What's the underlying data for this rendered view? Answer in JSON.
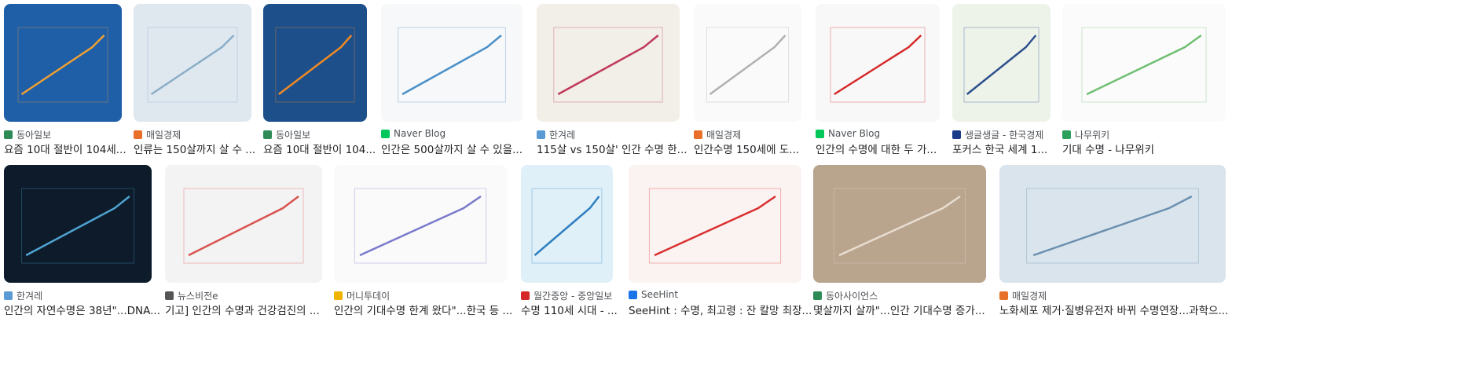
{
  "results": [
    {
      "source": "동아일보",
      "title": "요즘 10대 절반이 104세..."
    },
    {
      "source": "매일경제",
      "title": "인류는 150살까지 살 수 ..."
    },
    {
      "source": "동아일보",
      "title": "요즘 10대 절반이 104..."
    },
    {
      "source": "Naver Blog",
      "title": "인간은 500살까지 살 수 있을..."
    },
    {
      "source": "한겨레",
      "title": "115살 vs 150살' 인간 수명 한..."
    },
    {
      "source": "매일경제",
      "title": "인간수명 150세에 도..."
    },
    {
      "source": "Naver Blog",
      "title": "인간의 수명에 대한 두 가..."
    },
    {
      "source": "생글생글 - 한국경제",
      "title": "포커스 한국 세계 1..."
    },
    {
      "source": "나무위키",
      "title": "기대 수명 - 나무위키"
    },
    {
      "source": "한겨레",
      "title": "인간의 자연수명은 38년\"...DNA..."
    },
    {
      "source": "뉴스비전e",
      "title": "기고] 인간의 수명과 건강검진의 ..."
    },
    {
      "source": "머니투데이",
      "title": "인간의 기대수명 한계 왔다\"...한국 등 ..."
    },
    {
      "source": "월간중앙 - 중앙일보",
      "title": "수명 110세 시대 - ..."
    },
    {
      "source": "SeeHint",
      "title": "SeeHint : 수명, 최고령 : 잔 칼망 최장..."
    },
    {
      "source": "동아사이언스",
      "title": "몇살까지 살까\"...인간 기대수명 증가..."
    },
    {
      "source": "매일경제",
      "title": "노화세포 제거·질병유전자 바뀌 수명연장...과학으..."
    }
  ]
}
